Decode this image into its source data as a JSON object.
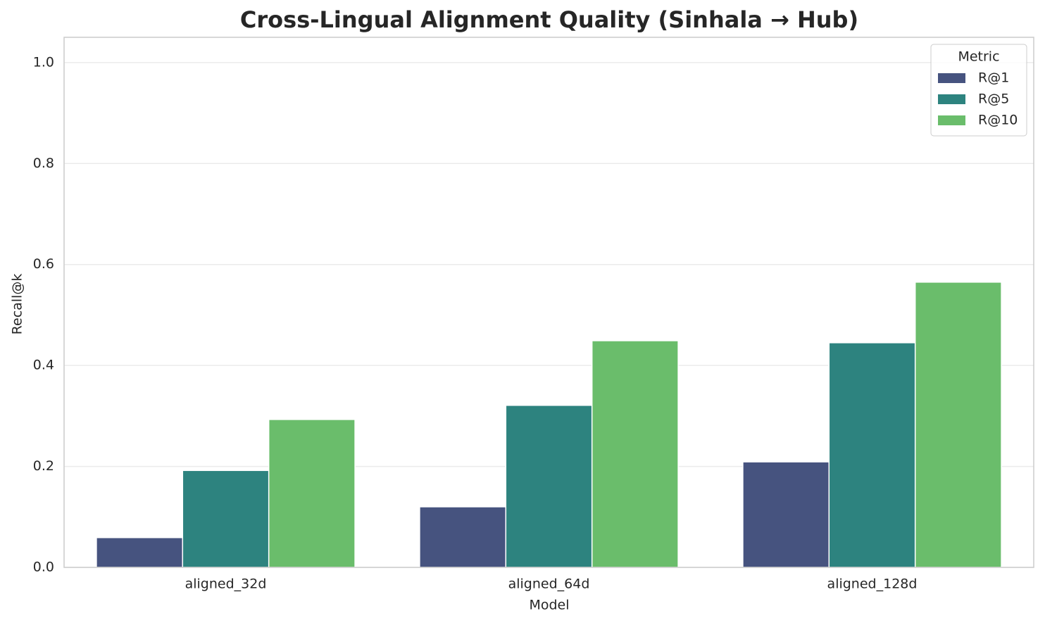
{
  "chart_data": {
    "type": "bar",
    "title": "Cross-Lingual Alignment Quality (Sinhala → Hub)",
    "xlabel": "Model",
    "ylabel": "Recall@k",
    "legend_title": "Metric",
    "legend": "upper right",
    "categories": [
      "aligned_32d",
      "aligned_64d",
      "aligned_128d"
    ],
    "series": [
      {
        "name": "R@1",
        "color": "#46537f",
        "values": [
          0.059,
          0.12,
          0.209
        ]
      },
      {
        "name": "R@5",
        "color": "#2d837f",
        "values": [
          0.192,
          0.321,
          0.445
        ]
      },
      {
        "name": "R@10",
        "color": "#6abd6b",
        "values": [
          0.293,
          0.449,
          0.565
        ]
      }
    ],
    "ylim": [
      0,
      1.05
    ],
    "yticks": [
      {
        "value": 0,
        "label": "0.0"
      },
      {
        "value": 0.2,
        "label": "0.2"
      },
      {
        "value": 0.4,
        "label": "0.4"
      },
      {
        "value": 0.6,
        "label": "0.6"
      },
      {
        "value": 0.8,
        "label": "0.8"
      },
      {
        "value": 1,
        "label": "1.0"
      }
    ],
    "grid": true
  }
}
